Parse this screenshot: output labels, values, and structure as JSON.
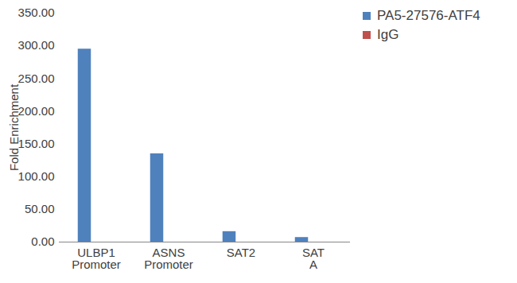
{
  "chart_data": {
    "type": "bar",
    "y_label": "Fold Enrichment",
    "categories": [
      "ULBP1 Promoter",
      "ASNS Promoter",
      "SAT2",
      "SAT A"
    ],
    "series": [
      {
        "name": "PA5-27576-ATF4",
        "color": "#4f81bd",
        "values": [
          295,
          135,
          16,
          7
        ]
      },
      {
        "name": "IgG",
        "color": "#c0504d",
        "values": [
          0,
          0,
          0,
          0
        ]
      }
    ],
    "ylim": [
      0,
      350
    ],
    "yticks": [
      {
        "value": 0,
        "label": "0.00"
      },
      {
        "value": 50,
        "label": "50.00"
      },
      {
        "value": 100,
        "label": "100.00"
      },
      {
        "value": 150,
        "label": "150.00"
      },
      {
        "value": 200,
        "label": "200.00"
      },
      {
        "value": 250,
        "label": "250.00"
      },
      {
        "value": 300,
        "label": "300.00"
      },
      {
        "value": 350,
        "label": "350.00"
      }
    ],
    "grid": false,
    "legend": "top-right"
  }
}
